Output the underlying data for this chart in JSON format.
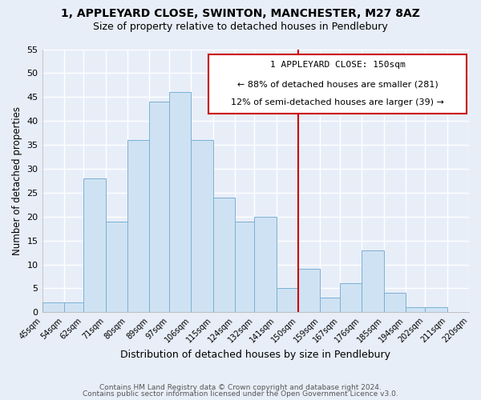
{
  "title_line1": "1, APPLEYARD CLOSE, SWINTON, MANCHESTER, M27 8AZ",
  "title_line2": "Size of property relative to detached houses in Pendlebury",
  "xlabel": "Distribution of detached houses by size in Pendlebury",
  "ylabel": "Number of detached properties",
  "bin_labels": [
    "45sqm",
    "54sqm",
    "62sqm",
    "71sqm",
    "80sqm",
    "89sqm",
    "97sqm",
    "106sqm",
    "115sqm",
    "124sqm",
    "132sqm",
    "141sqm",
    "150sqm",
    "159sqm",
    "167sqm",
    "176sqm",
    "185sqm",
    "194sqm",
    "202sqm",
    "211sqm",
    "220sqm"
  ],
  "bin_edges": [
    45,
    54,
    62,
    71,
    80,
    89,
    97,
    106,
    115,
    124,
    132,
    141,
    150,
    159,
    167,
    176,
    185,
    194,
    202,
    211,
    220
  ],
  "bar_heights": [
    2,
    2,
    28,
    19,
    36,
    44,
    46,
    36,
    24,
    19,
    20,
    5,
    9,
    3,
    6,
    13,
    4,
    1,
    1,
    0,
    0
  ],
  "bar_color": "#cfe2f3",
  "bar_edge_color": "#7bafd4",
  "vline_x": 150,
  "vline_color": "#cc0000",
  "annotation_title": "1 APPLEYARD CLOSE: 150sqm",
  "annotation_line1": "← 88% of detached houses are smaller (281)",
  "annotation_line2": "12% of semi-detached houses are larger (39) →",
  "annotation_box_color": "#ffffff",
  "annotation_box_edge": "#cc0000",
  "ylim": [
    0,
    55
  ],
  "yticks": [
    0,
    5,
    10,
    15,
    20,
    25,
    30,
    35,
    40,
    45,
    50,
    55
  ],
  "footer_line1": "Contains HM Land Registry data © Crown copyright and database right 2024.",
  "footer_line2": "Contains public sector information licensed under the Open Government Licence v3.0.",
  "background_color": "#e8eef8",
  "grid_color": "#ffffff"
}
